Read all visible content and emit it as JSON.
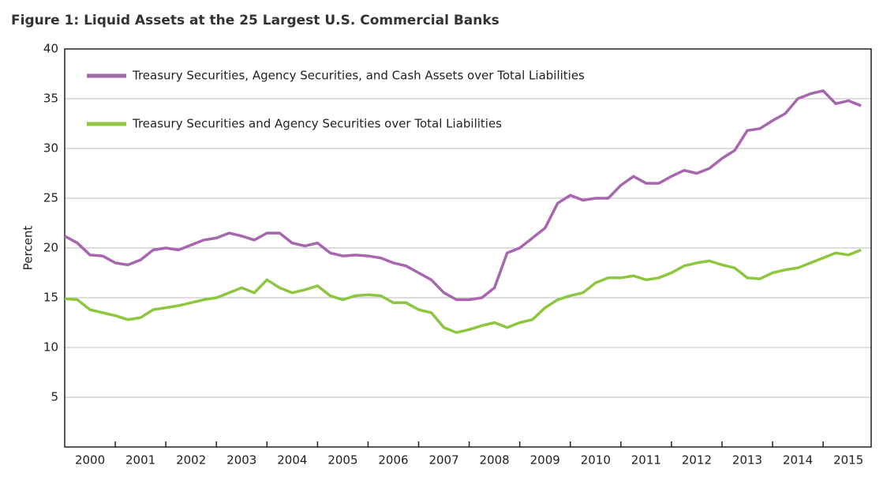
{
  "chart_data": {
    "type": "line",
    "title": "Figure 1: Liquid Assets at the 25 Largest U.S. Commercial Banks",
    "y_label": "Percent",
    "x": [
      2000,
      2000.25,
      2000.5,
      2000.75,
      2001,
      2001.25,
      2001.5,
      2001.75,
      2002,
      2002.25,
      2002.5,
      2002.75,
      2003,
      2003.25,
      2003.5,
      2003.75,
      2004,
      2004.25,
      2004.5,
      2004.75,
      2005,
      2005.25,
      2005.5,
      2005.75,
      2006,
      2006.25,
      2006.5,
      2006.75,
      2007,
      2007.25,
      2007.5,
      2007.75,
      2008,
      2008.25,
      2008.5,
      2008.75,
      2009,
      2009.25,
      2009.5,
      2009.75,
      2010,
      2010.25,
      2010.5,
      2010.75,
      2011,
      2011.25,
      2011.5,
      2011.75,
      2012,
      2012.25,
      2012.5,
      2012.75,
      2013,
      2013.25,
      2013.5,
      2013.75,
      2014,
      2014.25,
      2014.5,
      2014.75,
      2015,
      2015.25,
      2015.5,
      2015.75
    ],
    "series": [
      {
        "name": "Treasury Securities, Agency Securities, and Cash Assets over Total Liabilities",
        "color": "#a865b0",
        "values": [
          21.2,
          20.5,
          19.3,
          19.2,
          18.5,
          18.3,
          18.8,
          19.8,
          20.0,
          19.8,
          20.3,
          20.8,
          21.0,
          21.5,
          21.2,
          20.8,
          21.5,
          21.5,
          20.5,
          20.2,
          20.5,
          19.5,
          19.2,
          19.3,
          19.2,
          19.0,
          18.5,
          18.2,
          17.5,
          16.8,
          15.5,
          14.8,
          14.8,
          15.0,
          16.0,
          19.5,
          20.0,
          21.0,
          22.0,
          24.5,
          25.3,
          24.8,
          25.0,
          25.0,
          26.3,
          27.2,
          26.5,
          26.5,
          27.2,
          27.8,
          27.5,
          28.0,
          29.0,
          29.8,
          31.8,
          32.0,
          32.8,
          33.5,
          35.0,
          35.5,
          35.8,
          34.5,
          34.8,
          34.3
        ]
      },
      {
        "name": "Treasury Securities and Agency Securities over Total Liabilities",
        "color": "#8dc63f",
        "values": [
          14.9,
          14.8,
          13.8,
          13.5,
          13.2,
          12.8,
          13.0,
          13.8,
          14.0,
          14.2,
          14.5,
          14.8,
          15.0,
          15.5,
          16.0,
          15.5,
          16.8,
          16.0,
          15.5,
          15.8,
          16.2,
          15.2,
          14.8,
          15.2,
          15.3,
          15.2,
          14.5,
          14.5,
          13.8,
          13.5,
          12.0,
          11.5,
          11.8,
          12.2,
          12.5,
          12.0,
          12.5,
          12.8,
          14.0,
          14.8,
          15.2,
          15.5,
          16.5,
          17.0,
          17.0,
          17.2,
          16.8,
          17.0,
          17.5,
          18.2,
          18.5,
          18.7,
          18.3,
          18.0,
          17.0,
          16.9,
          17.5,
          17.8,
          18.0,
          18.5,
          19.0,
          19.5,
          19.3,
          19.8
        ]
      }
    ],
    "xlim": [
      2000,
      2015.95
    ],
    "xticks": [
      2000,
      2001,
      2002,
      2003,
      2004,
      2005,
      2006,
      2007,
      2008,
      2009,
      2010,
      2011,
      2012,
      2013,
      2014,
      2015
    ],
    "ylim": [
      0,
      40
    ],
    "yticks": [
      5,
      10,
      15,
      20,
      25,
      30,
      35,
      40
    ],
    "grid": true,
    "legend": "top-left"
  }
}
